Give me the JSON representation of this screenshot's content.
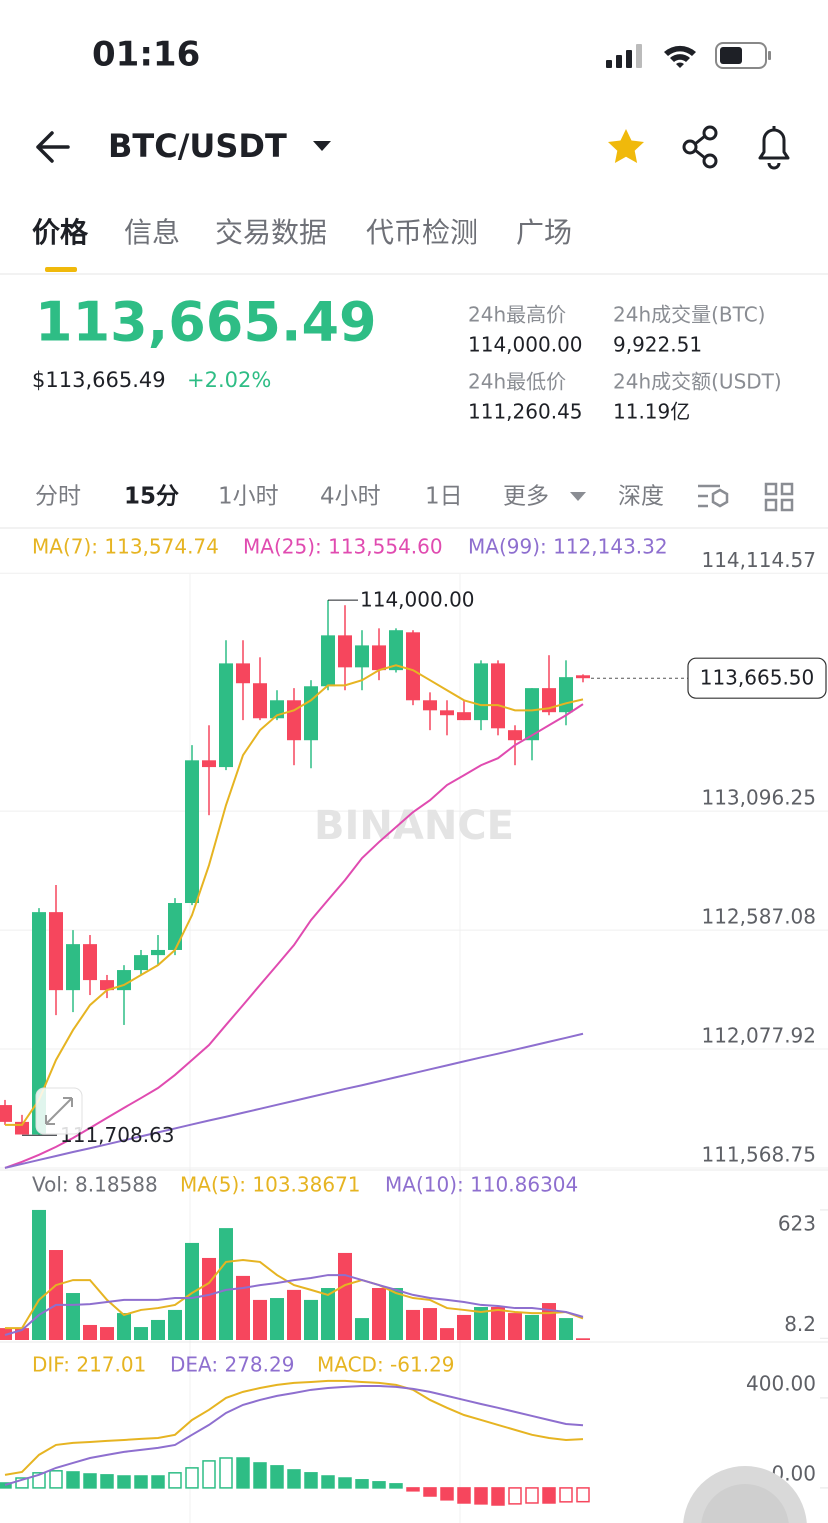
{
  "status_bar": {
    "time": "01:16"
  },
  "header": {
    "pair": "BTC/USDT"
  },
  "tabs": {
    "items": [
      "价格",
      "信息",
      "交易数据",
      "代币检测",
      "广场"
    ],
    "active": 0
  },
  "ticker": {
    "price": "113,665.49",
    "price_usd": "$113,665.49",
    "change": "+2.02%",
    "stats": [
      {
        "label": "24h最高价",
        "value": "114,000.00"
      },
      {
        "label": "24h成交量(BTC)",
        "value": "9,922.51"
      },
      {
        "label": "24h最低价",
        "value": "111,260.45"
      },
      {
        "label": "24h成交额(USDT)",
        "value": "11.19亿"
      }
    ]
  },
  "intervals": {
    "items": [
      "分时",
      "15分",
      "1小时",
      "4小时",
      "1日",
      "更多",
      "深度"
    ],
    "active": 1
  },
  "chart_data": [
    {
      "type": "candlestick",
      "watermark": "BINANCE",
      "up_color": "#2ebd85",
      "down_color": "#f6465d",
      "open": [
        111838,
        111766,
        111712,
        112664,
        112330,
        112527,
        112373,
        112330,
        112416,
        112480,
        112502,
        112703,
        113314,
        113285,
        113729,
        113644,
        113494,
        113571,
        113400,
        113631,
        113849,
        113712,
        113806,
        113700,
        113862,
        113571,
        113528,
        113520,
        113486,
        113729,
        113443,
        113400,
        113623,
        113520,
        113678
      ],
      "high": [
        111860,
        111796,
        112681,
        112780,
        112587,
        112566,
        112395,
        112437,
        112502,
        112566,
        112724,
        113379,
        113464,
        113828,
        113828,
        113755,
        113614,
        113623,
        113657,
        114000,
        113978,
        113871,
        113879,
        113879,
        113871,
        113605,
        113571,
        113571,
        113742,
        113742,
        113464,
        113623,
        113764,
        113742,
        113682
      ],
      "low": [
        111753,
        111712,
        111708.63,
        112223,
        112236,
        112309,
        112296,
        112181,
        112395,
        112437,
        112480,
        112694,
        113079,
        113272,
        113486,
        113486,
        113486,
        113293,
        113280,
        113614,
        113614,
        113614,
        113657,
        113690,
        113550,
        113443,
        113421,
        113486,
        113443,
        113421,
        113293,
        113314,
        113507,
        113464,
        113648
      ],
      "close": [
        111766,
        111712,
        112664,
        112330,
        112527,
        112373,
        112330,
        112416,
        112480,
        112502,
        112703,
        113314,
        113285,
        113729,
        113644,
        113494,
        113571,
        113400,
        113631,
        113849,
        113712,
        113806,
        113700,
        113871,
        113571,
        113528,
        113507,
        113486,
        113729,
        113451,
        113400,
        113623,
        113520,
        113670,
        113665.49
      ],
      "series": [
        {
          "name": "MA(7): 113,574.74",
          "color": "#e6b422",
          "values": [
            111753,
            111753,
            111860,
            112031,
            112159,
            112266,
            112330,
            112352,
            112395,
            112437,
            112502,
            112651,
            112865,
            113122,
            113336,
            113443,
            113507,
            113528,
            113571,
            113635,
            113635,
            113657,
            113700,
            113721,
            113700,
            113657,
            113614,
            113571,
            113550,
            113550,
            113528,
            113528,
            113537,
            113558,
            113574.74
          ]
        },
        {
          "name": "MA(25): 113,554.60",
          "color": "#e04bb0",
          "values": [
            111569,
            111595,
            111625,
            111659,
            111697,
            111740,
            111783,
            111826,
            111868,
            111911,
            111967,
            112031,
            112095,
            112181,
            112266,
            112352,
            112437,
            112523,
            112630,
            112716,
            112801,
            112895,
            112964,
            113028,
            113092,
            113143,
            113208,
            113250,
            113293,
            113323,
            113379,
            113421,
            113464,
            113507,
            113554.6
          ]
        },
        {
          "name": "MA(99): 112,143.32",
          "color": "#8e6fcf",
          "values": [
            111569,
            111586,
            111603,
            111620,
            111637,
            111653,
            111670,
            111687,
            111704,
            111721,
            111738,
            111755,
            111772,
            111788,
            111805,
            111822,
            111839,
            111856,
            111873,
            111890,
            111907,
            111923,
            111940,
            111957,
            111974,
            111991,
            112008,
            112025,
            112042,
            112058,
            112075,
            112092,
            112109,
            112126,
            112143.32
          ]
        }
      ],
      "high_label": "114,000.00",
      "low_label": "111,708.63",
      "last_price": {
        "value": 113665.5,
        "label": "113,665.50"
      },
      "ylim": [
        111560,
        114300
      ],
      "yticks": [
        {
          "value": 114114.57,
          "label": "114,114.57"
        },
        {
          "value": 113096.25,
          "label": "113,096.25"
        },
        {
          "value": 112587.08,
          "label": "112,587.08"
        },
        {
          "value": 112077.92,
          "label": "112,077.92"
        },
        {
          "value": 111568.75,
          "label": "111,568.75"
        }
      ],
      "grid": true
    },
    {
      "type": "bar",
      "label": "Vol: 8.18588",
      "values": [
        57,
        57,
        623,
        431,
        225,
        72,
        62,
        129,
        62,
        96,
        144,
        465,
        393,
        536,
        307,
        192,
        201,
        240,
        192,
        249,
        417,
        105,
        249,
        249,
        144,
        153,
        57,
        120,
        158,
        158,
        129,
        120,
        177,
        105,
        8.18588
      ],
      "series": [
        {
          "name": "MA(5): 103.38671",
          "color": "#e6b422",
          "values": [
            57,
            57,
            192,
            263,
            287,
            287,
            192,
            120,
            144,
            153,
            168,
            225,
            273,
            374,
            383,
            374,
            311,
            263,
            240,
            216,
            263,
            287,
            263,
            225,
            201,
            192,
            153,
            144,
            134,
            144,
            134,
            129,
            129,
            134,
            103.38671
          ]
        },
        {
          "name": "MA(10): 110.86304",
          "color": "#8e6fcf",
          "values": [
            24,
            48,
            120,
            168,
            168,
            172,
            182,
            192,
            192,
            192,
            201,
            201,
            216,
            240,
            249,
            263,
            273,
            287,
            297,
            311,
            311,
            287,
            263,
            240,
            216,
            201,
            192,
            182,
            168,
            163,
            153,
            153,
            144,
            134,
            110.86304
          ]
        }
      ],
      "ylim": [
        0,
        776
      ],
      "yticks": [
        623,
        8.2
      ]
    },
    {
      "type": "macd",
      "up_color": "#2ebd85",
      "down_color": "#f6465d",
      "series": [
        {
          "name": "DIF: 217.01",
          "color": "#e6b422",
          "values": [
            58,
            71,
            147,
            191,
            200,
            204,
            209,
            213,
            218,
            222,
            236,
            302,
            347,
            400,
            427,
            444,
            458,
            467,
            471,
            476,
            476,
            471,
            467,
            458,
            436,
            391,
            356,
            324,
            302,
            280,
            258,
            236,
            222,
            213,
            217.01
          ]
        },
        {
          "name": "DEA: 278.29",
          "color": "#8e6fcf",
          "values": [
            13,
            36,
            58,
            89,
            111,
            133,
            147,
            160,
            169,
            178,
            191,
            236,
            280,
            333,
            369,
            391,
            409,
            422,
            436,
            444,
            449,
            453,
            453,
            449,
            440,
            427,
            409,
            391,
            373,
            356,
            338,
            320,
            302,
            284,
            278.29
          ]
        }
      ],
      "histogram_label": "MACD: -61.29",
      "histogram": [
        22,
        44,
        67,
        76,
        71,
        62,
        58,
        53,
        53,
        53,
        67,
        89,
        120,
        133,
        133,
        111,
        98,
        80,
        67,
        53,
        44,
        36,
        27,
        18,
        -13,
        -36,
        -53,
        -67,
        -71,
        -76,
        -71,
        -67,
        -67,
        -62,
        -61.29
      ],
      "ylim": [
        -156,
        613
      ],
      "yticks": [
        {
          "value": 400,
          "label": "400.00"
        },
        {
          "value": 0,
          "label": "0.00"
        }
      ]
    }
  ]
}
